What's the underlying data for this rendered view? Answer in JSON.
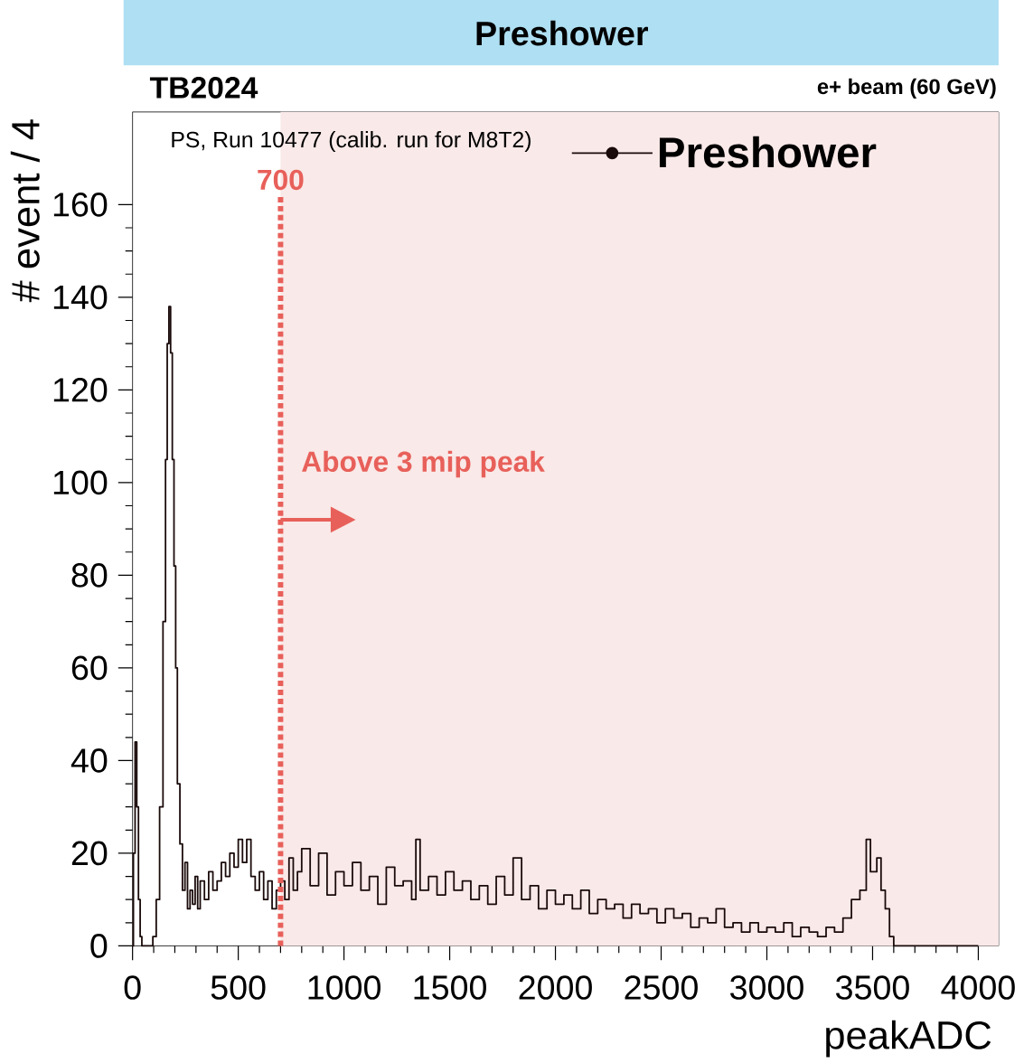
{
  "chart_data": {
    "type": "step",
    "title": "Preshower",
    "xlabel": "peakADC",
    "ylabel": "# event / 4",
    "annotations": [
      "TB2024",
      "e+ beam (60 GeV)",
      "PS, Run 10477 (calib. run for M8T2)",
      {
        "text": "Above 3 mip peak",
        "x": 700,
        "y": 92
      }
    ],
    "xlim": [
      0,
      4096
    ],
    "ylim": [
      0,
      180
    ],
    "xticks": [
      0,
      500,
      1000,
      1500,
      2000,
      2500,
      3000,
      3500,
      4000
    ],
    "yticks": [
      0,
      20,
      40,
      60,
      80,
      100,
      120,
      140,
      160
    ],
    "legend": "top right",
    "grid": false,
    "ref_lines": [
      {
        "axis": "x",
        "value": 700,
        "label": "700",
        "color": "#e8605a",
        "line_style": "dotted"
      }
    ],
    "bands": [
      {
        "axis": "x",
        "from": 700,
        "to": 4096,
        "color": "#f9e9e8"
      }
    ],
    "series": [
      {
        "name": "Preshower",
        "color": "#1a0a0a",
        "x": [
          0,
          4,
          12,
          20,
          28,
          36,
          44,
          80,
          96,
          112,
          128,
          144,
          156,
          164,
          172,
          180,
          188,
          196,
          204,
          212,
          224,
          236,
          248,
          260,
          272,
          284,
          296,
          308,
          320,
          340,
          360,
          380,
          400,
          420,
          440,
          460,
          480,
          500,
          520,
          540,
          560,
          580,
          600,
          620,
          640,
          660,
          680,
          700,
          720,
          740,
          760,
          780,
          800,
          840,
          880,
          920,
          960,
          1000,
          1040,
          1080,
          1120,
          1160,
          1200,
          1240,
          1280,
          1320,
          1340,
          1360,
          1400,
          1440,
          1480,
          1520,
          1560,
          1600,
          1640,
          1680,
          1720,
          1760,
          1800,
          1840,
          1880,
          1920,
          1960,
          2000,
          2040,
          2080,
          2120,
          2160,
          2200,
          2240,
          2280,
          2320,
          2360,
          2400,
          2440,
          2480,
          2520,
          2560,
          2600,
          2640,
          2680,
          2720,
          2760,
          2800,
          2840,
          2880,
          2920,
          2960,
          3000,
          3040,
          3080,
          3120,
          3160,
          3200,
          3240,
          3280,
          3320,
          3360,
          3400,
          3440,
          3470,
          3490,
          3520,
          3540,
          3560,
          3580,
          3600,
          4000
        ],
        "values": [
          0,
          20,
          44,
          30,
          10,
          2,
          0,
          0,
          2,
          10,
          30,
          70,
          105,
          130,
          138,
          128,
          105,
          82,
          60,
          35,
          22,
          12,
          18,
          8,
          12,
          9,
          15,
          8,
          14,
          10,
          16,
          12,
          14,
          18,
          15,
          20,
          17,
          23,
          18,
          23,
          15,
          12,
          16,
          10,
          14,
          8,
          12,
          14,
          10,
          19,
          12,
          16,
          21,
          13,
          20,
          11,
          16,
          13,
          18,
          12,
          15,
          9,
          17,
          13,
          14,
          10,
          23,
          12,
          15,
          11,
          16,
          12,
          14,
          10,
          13,
          9,
          15,
          11,
          19,
          10,
          13,
          8,
          12,
          9,
          11,
          8,
          12,
          7,
          10,
          8,
          9,
          6,
          9,
          7,
          8,
          5,
          8,
          6,
          7,
          4,
          6,
          5,
          8,
          4,
          5,
          3,
          5,
          3,
          4,
          3,
          5,
          2,
          4,
          3,
          2,
          4,
          3,
          6,
          10,
          12,
          23,
          16,
          19,
          12,
          8,
          2,
          0,
          0
        ]
      }
    ]
  }
}
